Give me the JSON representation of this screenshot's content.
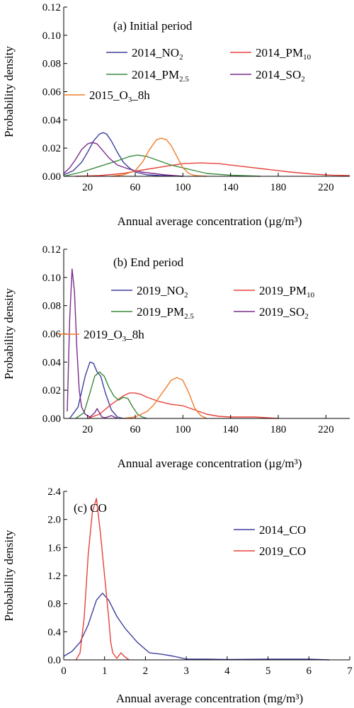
{
  "chart_data": [
    {
      "type": "line",
      "title": "(a) Initial period",
      "xlabel": "Annual average concentration (µg/m³)",
      "ylabel": "Probability density",
      "xlim": [
        0,
        240
      ],
      "ylim": [
        0,
        0.12
      ],
      "xticks": [
        20,
        60,
        100,
        140,
        180,
        220
      ],
      "xtick_labels": [
        "20",
        "60",
        "100",
        "140",
        "180",
        "220"
      ],
      "yticks": [
        0,
        0.02,
        0.04,
        0.06,
        0.08,
        0.1,
        0.12
      ],
      "ytick_labels": [
        "0.00",
        "0.02",
        "0.04",
        "0.06",
        "0.08",
        "0.10",
        "0.12"
      ],
      "grid": false,
      "legend_position": "top-right",
      "series": [
        {
          "name": "2014_NO2",
          "label_base": "2014_NO",
          "label_sub": "2",
          "label_tail": "",
          "color": "#3f3f9f",
          "x": [
            0,
            8,
            15,
            20,
            25,
            30,
            33,
            36,
            40,
            45,
            50,
            55,
            60,
            70,
            80,
            90,
            100
          ],
          "y": [
            0.001,
            0.004,
            0.01,
            0.017,
            0.025,
            0.03,
            0.031,
            0.03,
            0.025,
            0.017,
            0.01,
            0.006,
            0.003,
            0.001,
            0.0005,
            0.0002,
            0
          ]
        },
        {
          "name": "2014_PM10",
          "label_base": "2014_PM",
          "label_sub": "10",
          "label_tail": "",
          "color": "#e8413a",
          "x": [
            10,
            30,
            50,
            70,
            85,
            100,
            115,
            130,
            150,
            170,
            190,
            210,
            225,
            240
          ],
          "y": [
            0,
            0.0005,
            0.002,
            0.005,
            0.007,
            0.009,
            0.0095,
            0.009,
            0.007,
            0.005,
            0.003,
            0.0015,
            0.0008,
            0.0005
          ]
        },
        {
          "name": "2014_PM2.5",
          "label_base": "2014_PM",
          "label_sub": "2.5",
          "label_tail": "",
          "color": "#3b8a3b",
          "x": [
            0,
            15,
            30,
            45,
            55,
            62,
            70,
            80,
            90,
            100,
            110,
            120,
            140,
            165
          ],
          "y": [
            0,
            0.003,
            0.007,
            0.011,
            0.014,
            0.015,
            0.014,
            0.011,
            0.008,
            0.006,
            0.004,
            0.002,
            0.0008,
            0
          ]
        },
        {
          "name": "2014_SO2",
          "label_base": "2014_SO",
          "label_sub": "2",
          "label_tail": "",
          "color": "#7b2b8b",
          "x": [
            0,
            5,
            10,
            15,
            20,
            24,
            28,
            32,
            38,
            45,
            55,
            65,
            75,
            85,
            100
          ],
          "y": [
            0.002,
            0.006,
            0.012,
            0.019,
            0.023,
            0.024,
            0.023,
            0.019,
            0.013,
            0.008,
            0.005,
            0.003,
            0.002,
            0.001,
            0
          ]
        },
        {
          "name": "2015_O3_8h",
          "label_base": "2015_O",
          "label_sub": "3",
          "label_tail": "_8h",
          "color": "#f07c2a",
          "x": [
            40,
            50,
            60,
            66,
            72,
            78,
            82,
            86,
            90,
            95,
            100,
            105,
            110,
            120
          ],
          "y": [
            0,
            0.001,
            0.004,
            0.01,
            0.019,
            0.026,
            0.027,
            0.026,
            0.022,
            0.014,
            0.006,
            0.002,
            0.0005,
            0
          ]
        }
      ]
    },
    {
      "type": "line",
      "title": "(b) End period",
      "xlabel": "Annual average concentration (µg/m³)",
      "ylabel": "Probability density",
      "xlim": [
        0,
        240
      ],
      "ylim": [
        0,
        0.12
      ],
      "xticks": [
        20,
        60,
        100,
        140,
        180,
        220
      ],
      "xtick_labels": [
        "20",
        "60",
        "100",
        "140",
        "180",
        "220"
      ],
      "yticks": [
        0,
        0.02,
        0.04,
        0.06,
        0.08,
        0.1,
        0.12
      ],
      "ytick_labels": [
        "0.00",
        "0.02",
        "0.04",
        "0.06",
        "0.08",
        "0.10",
        "0.12"
      ],
      "grid": false,
      "legend_position": "top-right",
      "series": [
        {
          "name": "2019_NO2",
          "label_base": "2019_NO",
          "label_sub": "2",
          "label_tail": "",
          "color": "#3f3f9f",
          "x": [
            5,
            12,
            18,
            22,
            25,
            28,
            31,
            35,
            40,
            45,
            50
          ],
          "y": [
            0,
            0.008,
            0.03,
            0.04,
            0.039,
            0.033,
            0.03,
            0.018,
            0.006,
            0.001,
            0
          ]
        },
        {
          "name": "2019_PM10",
          "label_base": "2019_PM",
          "label_sub": "10",
          "label_tail": "",
          "color": "#e8413a",
          "x": [
            20,
            30,
            40,
            50,
            55,
            60,
            65,
            70,
            80,
            90,
            100,
            110,
            120,
            130,
            140,
            160,
            180
          ],
          "y": [
            0,
            0.003,
            0.01,
            0.016,
            0.018,
            0.018,
            0.017,
            0.015,
            0.012,
            0.01,
            0.009,
            0.006,
            0.003,
            0.0015,
            0.001,
            0.001,
            0
          ]
        },
        {
          "name": "2019_PM2.5",
          "label_base": "2019_PM",
          "label_sub": "2.5",
          "label_tail": "",
          "color": "#3b8a3b",
          "x": [
            10,
            17,
            22,
            26,
            30,
            34,
            38,
            42,
            46,
            50,
            54,
            58,
            62,
            66,
            70
          ],
          "y": [
            0,
            0.004,
            0.018,
            0.03,
            0.033,
            0.03,
            0.022,
            0.016,
            0.013,
            0.015,
            0.014,
            0.008,
            0.003,
            0.001,
            0
          ]
        },
        {
          "name": "2019_SO2",
          "label_base": "2019_SO",
          "label_sub": "2",
          "label_tail": "",
          "color": "#7b2b8b",
          "x": [
            3,
            5,
            7,
            9,
            11,
            13,
            15,
            18,
            22,
            26,
            28,
            30,
            32,
            35,
            40,
            45
          ],
          "y": [
            0.005,
            0.07,
            0.106,
            0.09,
            0.05,
            0.02,
            0.008,
            0.003,
            0.001,
            0.004,
            0.007,
            0.004,
            0.001,
            0.0005,
            0.002,
            0
          ]
        },
        {
          "name": "2019_O3_8h",
          "label_base": "2019_O",
          "label_sub": "3",
          "label_tail": "_8h",
          "color": "#f07c2a",
          "x": [
            50,
            60,
            70,
            76,
            80,
            86,
            90,
            95,
            100,
            105,
            110,
            115,
            120
          ],
          "y": [
            0,
            0.001,
            0.005,
            0.01,
            0.015,
            0.022,
            0.027,
            0.029,
            0.027,
            0.018,
            0.007,
            0.002,
            0
          ]
        }
      ]
    },
    {
      "type": "line",
      "title": "(c) CO",
      "xlabel": "Annual average concentration (mg/m³)",
      "ylabel": "Probability density",
      "xlim": [
        0,
        7
      ],
      "ylim": [
        0,
        2.4
      ],
      "xticks": [
        0,
        1,
        2,
        3,
        4,
        5,
        6,
        7
      ],
      "xtick_labels": [
        "0",
        "1",
        "2",
        "3",
        "4",
        "5",
        "6",
        "7"
      ],
      "yticks": [
        0,
        0.4,
        0.8,
        1.2,
        1.6,
        2.0,
        2.4
      ],
      "ytick_labels": [
        "0.0",
        "0.4",
        "0.8",
        "1.2",
        "1.6",
        "2.0",
        "2.4"
      ],
      "grid": false,
      "legend_position": "top-right",
      "series": [
        {
          "name": "2014_CO",
          "label_base": "2014_CO",
          "label_sub": "",
          "label_tail": "",
          "color": "#3f3f9f",
          "x": [
            0,
            0.2,
            0.4,
            0.6,
            0.8,
            0.95,
            1.1,
            1.3,
            1.5,
            1.8,
            2.1,
            2.4,
            2.7,
            3.0,
            3.5,
            4.0,
            5.0,
            6.0,
            6.5
          ],
          "y": [
            0.05,
            0.12,
            0.25,
            0.5,
            0.85,
            0.95,
            0.85,
            0.62,
            0.45,
            0.25,
            0.1,
            0.08,
            0.05,
            0.01,
            0.01,
            0.005,
            0.01,
            0.01,
            0
          ]
        },
        {
          "name": "2019_CO",
          "label_base": "2019_CO",
          "label_sub": "",
          "label_tail": "",
          "color": "#e8413a",
          "x": [
            0.3,
            0.4,
            0.5,
            0.6,
            0.7,
            0.8,
            0.9,
            1.0,
            1.1,
            1.15,
            1.2,
            1.3,
            1.4,
            1.5,
            1.6
          ],
          "y": [
            0,
            0.1,
            0.6,
            1.5,
            2.1,
            2.3,
            1.8,
            1.2,
            0.6,
            0.25,
            0.1,
            0.02,
            0.1,
            0.04,
            0
          ]
        }
      ]
    }
  ]
}
